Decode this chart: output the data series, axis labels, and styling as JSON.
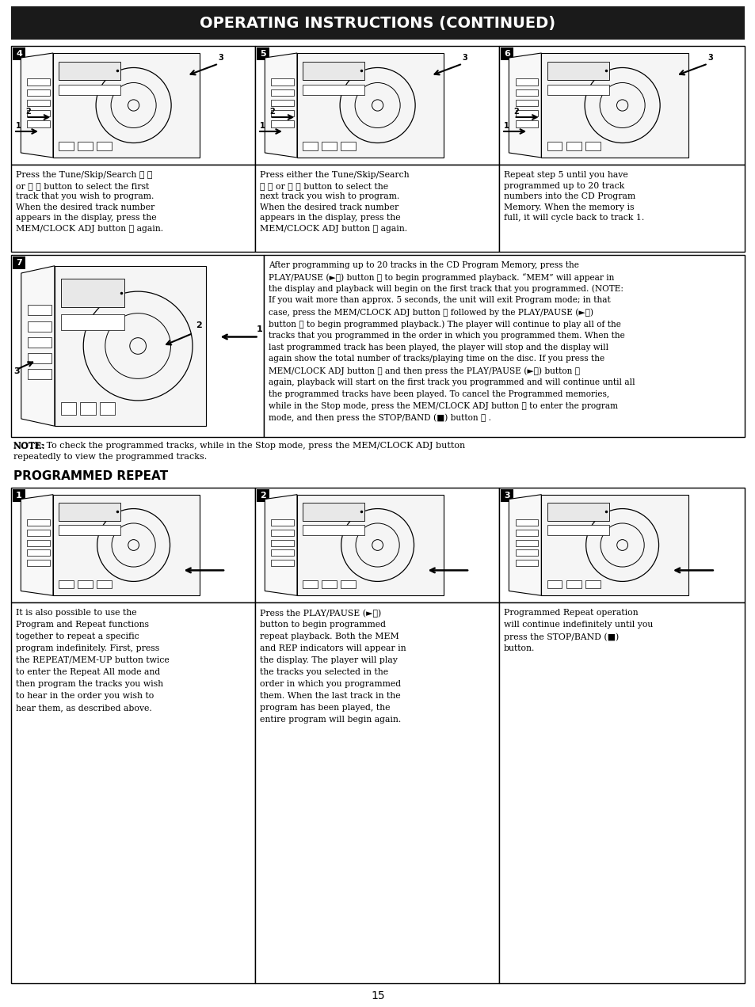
{
  "title": "OPERATING INSTRUCTIONS (CONTINUED)",
  "title_bg": "#1a1a1a",
  "title_color": "#ffffff",
  "page_number": "15",
  "bg_color": "#ffffff",
  "section_header": "PROGRAMMED REPEAT",
  "box4_text": "Press the Tune/Skip/Search ⏮ ①\nor ⏭ ② button to select the first\ntrack that you wish to program.\nWhen the desired track number\nappears in the display, press the\nMEM/CLOCK ADJ button ③ again.",
  "box5_text": "Press either the Tune/Skip/Search\n⏮ ① or ⏭ ② button to select the\nnext track you wish to program.\nWhen the desired track number\nappears in the display, press the\nMEM/CLOCK ADJ button ③ again.",
  "box6_text": "Repeat step 5 until you have\nprogrammed up to 20 track\nnumbers into the CD Program\nMemory. When the memory is\nfull, it will cycle back to track 1.",
  "box7_lines": [
    "After programming up to 20 tracks in the CD Program Memory, press the",
    "PLAY/PAUSE (►⏸) button ① to begin programmed playback. “MEM” will appear in",
    "the display and playback will begin on the first track that you programmed. (NOTE:",
    "If you wait more than approx. 5 seconds, the unit will exit Program mode; in that",
    "case, press the MEM/CLOCK ADJ button ② followed by the PLAY/PAUSE (►⏸)",
    "button ① to begin programmed playback.) The player will continue to play all of the",
    "tracks that you programmed in the order in which you programmed them. When the",
    "last programmed track has been played, the player will stop and the display will",
    "again show the total number of tracks/playing time on the disc. If you press the",
    "MEM/CLOCK ADJ button ② and then press the PLAY/PAUSE (►⏸) button ①",
    "again, playback will start on the first track you programmed and will continue until all",
    "the programmed tracks have been played. To cancel the Programmed memories,",
    "while in the Stop mode, press the MEM/CLOCK ADJ button ② to enter the program",
    "mode, and then press the STOP/BAND (■) button ③ ."
  ],
  "note_line1": "NOTE: To check the programmed tracks, while in the Stop mode, press the MEM/CLOCK ADJ button",
  "note_line2": "repeatedly to view the programmed tracks.",
  "pr_box1_lines": [
    "It is also possible to use the",
    "Program and Repeat functions",
    "together to repeat a specific",
    "program indefinitely. First, press",
    "the REPEAT/MEM-UP button twice",
    "to enter the Repeat All mode and",
    "then program the tracks you wish",
    "to hear in the order you wish to",
    "hear them, as described above."
  ],
  "pr_box2_lines": [
    "Press the PLAY/PAUSE (►⏸)",
    "button to begin programmed",
    "repeat playback. Both the MEM",
    "and REP indicators will appear in",
    "the display. The player will play",
    "the tracks you selected in the",
    "order in which you programmed",
    "them. When the last track in the",
    "program has been played, the",
    "entire program will begin again."
  ],
  "pr_box3_lines": [
    "Programmed Repeat operation",
    "will continue indefinitely until you",
    "press the STOP/BAND (■)",
    "button."
  ]
}
